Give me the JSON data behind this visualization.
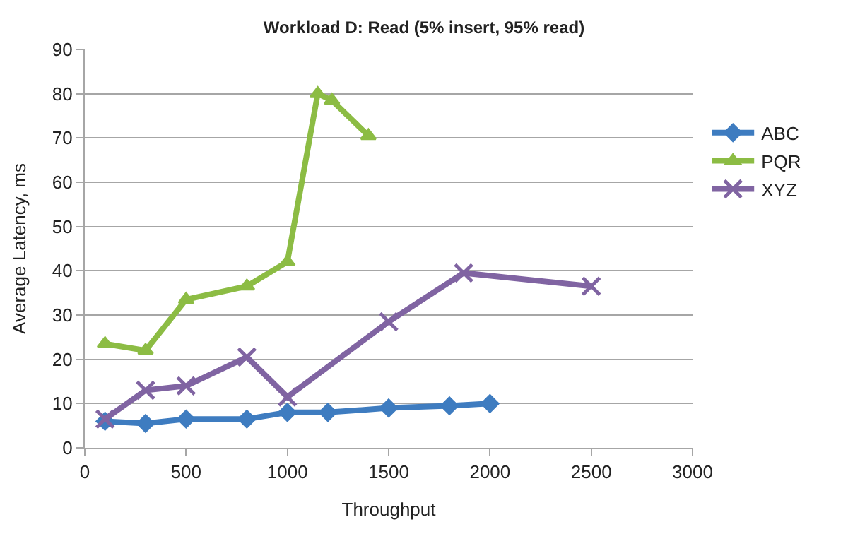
{
  "chart_data": {
    "type": "line",
    "title": "Workload D: Read (5% insert, 95% read)",
    "xlabel": "Throughput",
    "ylabel": "Average Latency, ms",
    "xlim": [
      0,
      3000
    ],
    "xticks": [
      0,
      500,
      1000,
      1500,
      2000,
      2500,
      3000
    ],
    "ylim": [
      0,
      90
    ],
    "yticks": [
      0,
      10,
      20,
      30,
      40,
      50,
      60,
      70,
      80,
      90
    ],
    "grid": "y",
    "legend": "right",
    "series": [
      {
        "name": "ABC",
        "color": "#3e7cc0",
        "marker": "diamond",
        "x": [
          100,
          300,
          500,
          800,
          1000,
          1200,
          1500,
          1800,
          2000
        ],
        "values": [
          6,
          5.5,
          6.5,
          6.5,
          8,
          8,
          9,
          9.5,
          10
        ]
      },
      {
        "name": "PQR",
        "color": "#8cbc44",
        "marker": "triangle",
        "x": [
          100,
          300,
          500,
          800,
          1000,
          1150,
          1220,
          1400
        ],
        "values": [
          23.5,
          22,
          33.5,
          36.5,
          42,
          80,
          78.5,
          70.5
        ]
      },
      {
        "name": "XYZ",
        "color": "#8064a2",
        "marker": "cross",
        "x": [
          100,
          300,
          500,
          800,
          1000,
          1500,
          1870,
          2500
        ],
        "values": [
          6.5,
          13,
          14,
          20.5,
          11.5,
          28.5,
          39.5,
          36.5
        ]
      }
    ]
  }
}
